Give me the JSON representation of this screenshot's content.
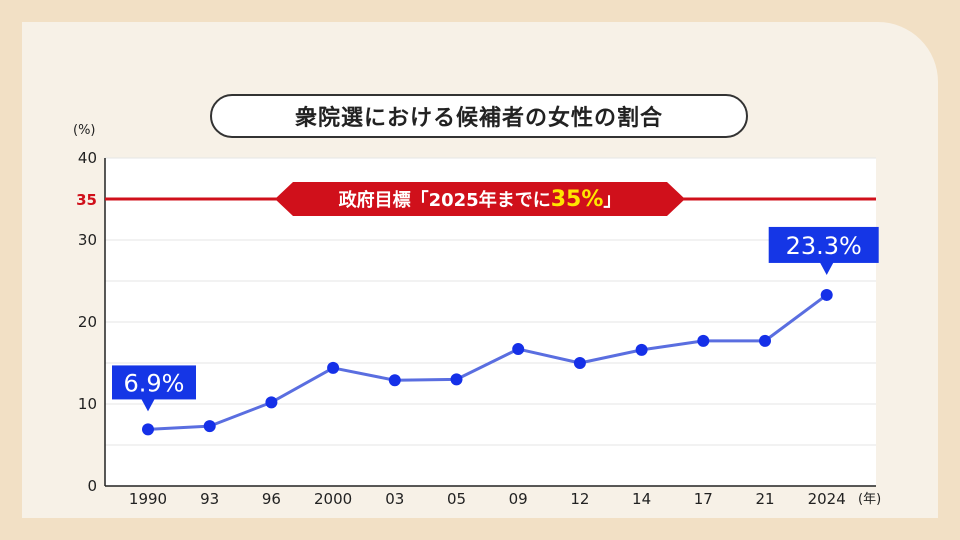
{
  "title": "衆院選における候補者の女性の割合",
  "colors": {
    "background": "#f2e0c5",
    "panel": "#f7f1e7",
    "line": "#5a6ee0",
    "marker": "#1530e8",
    "callout": "#1536e6",
    "target": "#d0101b",
    "target_highlight": "#ffe600"
  },
  "chart_data": {
    "type": "line",
    "y_unit_label": "(%)",
    "x_unit_label": "(年)",
    "ylim": [
      0,
      40
    ],
    "yticks": [
      "0",
      "10",
      "20",
      "30",
      "40"
    ],
    "grid": true,
    "categories": [
      "1990",
      "93",
      "96",
      "2000",
      "03",
      "05",
      "09",
      "12",
      "14",
      "17",
      "21",
      "2024"
    ],
    "series": [
      {
        "values": [
          6.9,
          7.3,
          10.2,
          14.4,
          12.9,
          13.0,
          16.7,
          15.0,
          16.6,
          17.7,
          17.7,
          23.3
        ]
      }
    ],
    "annotations": {
      "first": "6.9%",
      "last": "23.3%"
    },
    "target": {
      "value": 35,
      "tick_label": "35",
      "label_prefix": "政府目標「2025年までに",
      "label_highlight": "35%",
      "label_suffix": "」"
    }
  }
}
